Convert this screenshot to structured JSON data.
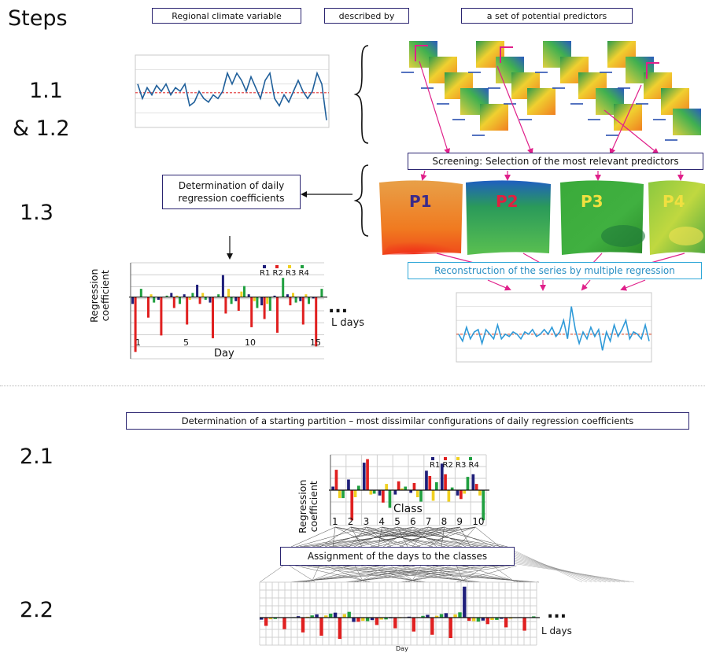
{
  "steps": {
    "header": "Steps",
    "s11": "1.1",
    "s12": "& 1.2",
    "s13": "1.3",
    "s21": "2.1",
    "s22": "2.2"
  },
  "top_labels": {
    "variable": "Regional climate variable",
    "described": "described by",
    "predictors": "a set of potential predictors"
  },
  "screening": "Screening: Selection of the most relevant predictors",
  "reconstruction": "Reconstruction of the series by multiple regression",
  "daily_coeffs": "Determination of daily regression coefficients",
  "predictor_maps": [
    "P1",
    "P2",
    "P3",
    "P4"
  ],
  "starting_partition": "Determination of a starting partition – most dissimilar configurations of daily regression coefficients",
  "assignment": "Assignment of the days to the classes",
  "legend": [
    "R1",
    "R2",
    "R3",
    "R4"
  ],
  "ylabel_line1": "Regression",
  "ylabel_line2": "coefficient",
  "xlabel_day": "Day",
  "xlabel_class": "Class",
  "ldays": "L days",
  "ellipsis": "...",
  "day_ticks": [
    "1",
    "5",
    "10",
    "15"
  ],
  "class_ticks": [
    "1",
    "2",
    "3",
    "4",
    "5",
    "6",
    "7",
    "8",
    "9",
    "10"
  ],
  "colors": {
    "R1": "#1f1f7a",
    "R2": "#e02020",
    "R3": "#f0d020",
    "R4": "#20a040",
    "box": "#2a2470",
    "cyan": "#2fa7d8",
    "magenta": "#e0208a"
  },
  "chart_data": [
    {
      "type": "line",
      "y": [
        2,
        0,
        1.5,
        0.5,
        1.8,
        1,
        2,
        0.5,
        1.5,
        1,
        2,
        -1,
        -0.5,
        1,
        0,
        -0.5,
        0.5,
        0,
        1,
        3.5,
        2,
        3.5,
        2.5,
        1,
        3,
        1.5,
        0,
        2.5,
        3.5,
        0,
        -1,
        0.5,
        -0.5,
        1,
        2.5,
        1,
        0,
        1,
        3.5,
        2,
        -3
      ],
      "reference_line": 0.8
    },
    {
      "type": "line",
      "y": [
        0,
        -1.5,
        1.5,
        -1,
        0.5,
        1,
        -2,
        1,
        0,
        -1,
        2,
        -1,
        0,
        -0.5,
        0.5,
        0,
        -1,
        0.5,
        0,
        1,
        -0.5,
        0,
        1,
        0,
        1.5,
        -0.5,
        0.5,
        3,
        -1,
        6,
        1,
        -2,
        0.5,
        -1,
        1.5,
        -0.5,
        1,
        -3.5,
        0.5,
        -1.5,
        2,
        -0.5,
        1,
        3,
        -1,
        0.5,
        0,
        -1,
        2,
        -1.5
      ],
      "reference_line": 0
    },
    {
      "type": "bar",
      "categories": [
        "1",
        "2",
        "3",
        "4",
        "5",
        "6",
        "7",
        "8",
        "9",
        "10",
        "11",
        "12",
        "13",
        "14",
        "15"
      ],
      "series": [
        {
          "name": "R1",
          "values": [
            -0.5,
            0,
            -0.2,
            0.3,
            0.2,
            0.9,
            -0.4,
            1.6,
            -0.3,
            0.2,
            -0.6,
            0.1,
            0.2,
            -0.3,
            -0.1
          ]
        },
        {
          "name": "R2",
          "values": [
            -4,
            -1.5,
            -2.8,
            -0.8,
            -2,
            -0.5,
            -3,
            -1.2,
            -1,
            -2.2,
            -1.6,
            -2.6,
            -0.6,
            -2,
            -3.6
          ]
        },
        {
          "name": "R3",
          "values": [
            0,
            0.2,
            0,
            0.1,
            -0.2,
            0.3,
            0,
            0.6,
            0.4,
            -0.3,
            -0.5,
            0,
            0.3,
            0.2,
            0
          ]
        },
        {
          "name": "R4",
          "values": [
            0.6,
            -0.4,
            0.1,
            -0.5,
            0.3,
            -0.2,
            0.2,
            -0.5,
            0.8,
            -0.8,
            -1,
            1.4,
            -0.4,
            -0.5,
            0.6
          ]
        }
      ]
    },
    {
      "type": "bar",
      "categories": [
        "1",
        "2",
        "3",
        "4",
        "5",
        "6",
        "7",
        "8",
        "9",
        "10"
      ],
      "series": [
        {
          "name": "R1",
          "values": [
            0.4,
            1.2,
            3.1,
            -0.6,
            -0.5,
            -0.3,
            2.2,
            3,
            -0.6,
            1.8
          ]
        },
        {
          "name": "R2",
          "values": [
            2.3,
            -3.4,
            3.5,
            -1.4,
            1,
            0.8,
            1.6,
            1.8,
            -1,
            0.7
          ]
        },
        {
          "name": "R3",
          "values": [
            -0.9,
            -0.8,
            -0.5,
            0.7,
            0.2,
            -0.8,
            -1.2,
            -1.3,
            -0.4,
            -0.6
          ]
        },
        {
          "name": "R4",
          "values": [
            -0.9,
            0.5,
            -0.4,
            -2,
            0.4,
            -1.3,
            0.9,
            0.3,
            1.5,
            -3.4
          ]
        }
      ]
    }
  ]
}
